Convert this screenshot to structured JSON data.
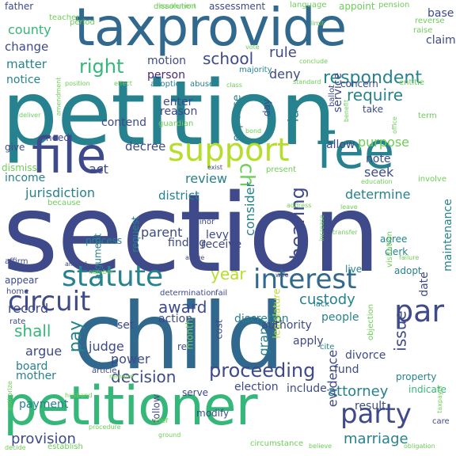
{
  "palette": {
    "purple": "#482878",
    "indigo": "#3e4a89",
    "blue": "#31688e",
    "teal": "#26828e",
    "green": "#1f9e89",
    "lime": "#35b779",
    "yellowgreen": "#6ece58",
    "yellow": "#b5de2b",
    "bright": "#fde725"
  },
  "words": [
    {
      "text": "section",
      "color": "#3e4a89"
    },
    {
      "text": "petition",
      "color": "#26828e"
    },
    {
      "text": "child",
      "color": "#31688e"
    },
    {
      "text": "petitioner",
      "color": "#35b779"
    },
    {
      "text": "taxprovide",
      "color": "#31688e"
    },
    {
      "text": "file",
      "color": "#3e4a89"
    },
    {
      "text": "fee",
      "color": "#26828e"
    },
    {
      "text": "support",
      "color": "#b5de2b"
    },
    {
      "text": "statute",
      "color": "#26828e"
    },
    {
      "text": "interest",
      "color": "#31688e"
    },
    {
      "text": "circuit",
      "color": "#3e4a89"
    },
    {
      "text": "party",
      "color": "#3e4a89"
    },
    {
      "text": "par",
      "color": "#3e4a89"
    },
    {
      "text": "respondent",
      "color": "#26828e"
    },
    {
      "text": "right",
      "color": "#35b779"
    },
    {
      "text": "school",
      "color": "#3e4a89"
    },
    {
      "text": "rule",
      "color": "#3e4a89"
    },
    {
      "text": "require",
      "color": "#26828e"
    },
    {
      "text": "ch",
      "color": "#6ece58"
    },
    {
      "text": "hearing",
      "color": "#3e4a89"
    },
    {
      "text": "consider",
      "color": "#26828e"
    },
    {
      "text": "proceeding",
      "color": "#3e4a89"
    },
    {
      "text": "decision",
      "color": "#3e4a89"
    },
    {
      "text": "provision",
      "color": "#3e4a89"
    },
    {
      "text": "marriage",
      "color": "#26828e"
    },
    {
      "text": "award",
      "color": "#3e4a89"
    },
    {
      "text": "custody",
      "color": "#26828e"
    },
    {
      "text": "shall",
      "color": "#35b779"
    },
    {
      "text": "year",
      "color": "#b5de2b"
    },
    {
      "text": "issue",
      "color": "#3e4a89"
    },
    {
      "text": "attorney",
      "color": "#26828e"
    },
    {
      "text": "county",
      "color": "#35b779"
    },
    {
      "text": "change",
      "color": "#3e4a89"
    },
    {
      "text": "matter",
      "color": "#26828e"
    },
    {
      "text": "notice",
      "color": "#26828e"
    },
    {
      "text": "motion",
      "color": "#3e4a89"
    },
    {
      "text": "person",
      "color": "#482878"
    },
    {
      "text": "deny",
      "color": "#3e4a89"
    },
    {
      "text": "law",
      "color": "#26828e"
    },
    {
      "text": "day",
      "color": "#3e4a89"
    },
    {
      "text": "enter",
      "color": "#3e4a89"
    },
    {
      "text": "reason",
      "color": "#3e4a89"
    },
    {
      "text": "contend",
      "color": "#3e4a89"
    },
    {
      "text": "expense",
      "color": "#26828e"
    },
    {
      "text": "service",
      "color": "#3e4a89"
    },
    {
      "text": "purpose",
      "color": "#6ece58"
    },
    {
      "text": "allow",
      "color": "#3e4a89"
    },
    {
      "text": "note",
      "color": "#3e4a89"
    },
    {
      "text": "seek",
      "color": "#3e4a89"
    },
    {
      "text": "determine",
      "color": "#26828e"
    },
    {
      "text": "jurisdiction",
      "color": "#26828e"
    },
    {
      "text": "district",
      "color": "#26828e"
    },
    {
      "text": "review",
      "color": "#26828e"
    },
    {
      "text": "decree",
      "color": "#3e4a89"
    },
    {
      "text": "act",
      "color": "#3e4a89"
    },
    {
      "text": "income",
      "color": "#26828e"
    },
    {
      "text": "argument",
      "color": "#26828e"
    },
    {
      "text": "record",
      "color": "#3e4a89"
    },
    {
      "text": "argue",
      "color": "#3e4a89"
    },
    {
      "text": "board",
      "color": "#26828e"
    },
    {
      "text": "mother",
      "color": "#26828e"
    },
    {
      "text": "payment",
      "color": "#26828e"
    },
    {
      "text": "parent",
      "color": "#3e4a89"
    },
    {
      "text": "finding",
      "color": "#3e4a89"
    },
    {
      "text": "receive",
      "color": "#3e4a89"
    },
    {
      "text": "request",
      "color": "#26828e"
    },
    {
      "text": "levy",
      "color": "#3e4a89"
    },
    {
      "text": "pay",
      "color": "#26828e"
    },
    {
      "text": "judge",
      "color": "#3e4a89"
    },
    {
      "text": "power",
      "color": "#3e4a89"
    },
    {
      "text": "action",
      "color": "#3e4a89"
    },
    {
      "text": "set",
      "color": "#3e4a89"
    },
    {
      "text": "rel",
      "color": "#3e4a89"
    },
    {
      "text": "month",
      "color": "#6ece58"
    },
    {
      "text": "grant",
      "color": "#26828e"
    },
    {
      "text": "cost",
      "color": "#3e4a89"
    },
    {
      "text": "discretion",
      "color": "#26828e"
    },
    {
      "text": "legislature",
      "color": "#b5de2b"
    },
    {
      "text": "authority",
      "color": "#3e4a89"
    },
    {
      "text": "people",
      "color": "#26828e"
    },
    {
      "text": "apply",
      "color": "#3e4a89"
    },
    {
      "text": "divorce",
      "color": "#3e4a89"
    },
    {
      "text": "fund",
      "color": "#3e4a89"
    },
    {
      "text": "evidence",
      "color": "#3e4a89"
    },
    {
      "text": "date",
      "color": "#3e4a89"
    },
    {
      "text": "maintenance",
      "color": "#26828e"
    },
    {
      "text": "election",
      "color": "#3e4a89"
    },
    {
      "text": "include",
      "color": "#3e4a89"
    },
    {
      "text": "result",
      "color": "#3e4a89"
    },
    {
      "text": "follow",
      "color": "#3e4a89"
    },
    {
      "text": "assessment",
      "color": "#3e4a89"
    },
    {
      "text": "father",
      "color": "#3e4a89"
    },
    {
      "text": "base",
      "color": "#3e4a89"
    },
    {
      "text": "claim",
      "color": "#3e4a89"
    },
    {
      "text": "need",
      "color": "#3e4a89"
    },
    {
      "text": "give",
      "color": "#3e4a89"
    },
    {
      "text": "dismiss",
      "color": "#6ece58"
    },
    {
      "text": "appear",
      "color": "#3e4a89"
    },
    {
      "text": "affirm",
      "color": "#3e4a89"
    },
    {
      "text": "home",
      "color": "#3e4a89"
    },
    {
      "text": "rate",
      "color": "#3e4a89"
    },
    {
      "text": "take",
      "color": "#3e4a89"
    },
    {
      "text": "concern",
      "color": "#3e4a89"
    },
    {
      "text": "process",
      "color": "#26828e"
    },
    {
      "text": "agree",
      "color": "#26828e"
    },
    {
      "text": "clerk",
      "color": "#26828e"
    },
    {
      "text": "live",
      "color": "#26828e"
    },
    {
      "text": "adopt",
      "color": "#26828e"
    },
    {
      "text": "lack",
      "color": "#26828e"
    },
    {
      "text": "cite",
      "color": "#26828e"
    },
    {
      "text": "serve",
      "color": "#3e4a89"
    },
    {
      "text": "modify",
      "color": "#3e4a89"
    },
    {
      "text": "article",
      "color": "#3e4a89"
    },
    {
      "text": "property",
      "color": "#26828e"
    },
    {
      "text": "indicate",
      "color": "#35b779"
    },
    {
      "text": "care",
      "color": "#3e4a89"
    },
    {
      "text": "dissolution",
      "color": "#6ece58"
    },
    {
      "text": "teacher",
      "color": "#6ece58"
    },
    {
      "text": "period",
      "color": "#6ece58"
    },
    {
      "text": "requirement",
      "color": "#6ece58"
    },
    {
      "text": "language",
      "color": "#6ece58"
    },
    {
      "text": "appoint",
      "color": "#6ece58"
    },
    {
      "text": "pension",
      "color": "#6ece58"
    },
    {
      "text": "raise",
      "color": "#6ece58"
    },
    {
      "text": "reverse",
      "color": "#6ece58"
    },
    {
      "text": "adoption",
      "color": "#26828e"
    },
    {
      "text": "abuse",
      "color": "#26828e"
    },
    {
      "text": "majority",
      "color": "#26828e"
    },
    {
      "text": "guardian",
      "color": "#6ece58"
    },
    {
      "text": "conclude",
      "color": "#6ece58"
    },
    {
      "text": "entitle",
      "color": "#6ece58"
    },
    {
      "text": "benefit",
      "color": "#6ece58"
    },
    {
      "text": "term",
      "color": "#6ece58"
    },
    {
      "text": "involve",
      "color": "#6ece58"
    },
    {
      "text": "amendment",
      "color": "#6ece58"
    },
    {
      "text": "present",
      "color": "#6ece58"
    },
    {
      "text": "increase",
      "color": "#6ece58"
    },
    {
      "text": "visitation",
      "color": "#6ece58"
    },
    {
      "text": "because",
      "color": "#6ece58"
    },
    {
      "text": "minor",
      "color": "#3e4a89"
    },
    {
      "text": "determination",
      "color": "#3e4a89"
    },
    {
      "text": "fail",
      "color": "#3e4a89"
    },
    {
      "text": "objection",
      "color": "#6ece58"
    },
    {
      "text": "remand",
      "color": "#6ece58"
    },
    {
      "text": "husband",
      "color": "#6ece58"
    },
    {
      "text": "authorize",
      "color": "#6ece58"
    },
    {
      "text": "relief",
      "color": "#6ece58"
    },
    {
      "text": "establish",
      "color": "#6ece58"
    },
    {
      "text": "circumstance",
      "color": "#6ece58"
    },
    {
      "text": "decide",
      "color": "#6ece58"
    },
    {
      "text": "believe",
      "color": "#6ece58"
    },
    {
      "text": "obligation",
      "color": "#6ece58"
    },
    {
      "text": "taxpayer",
      "color": "#6ece58"
    },
    {
      "text": "procedure",
      "color": "#6ece58"
    },
    {
      "text": "ballot",
      "color": "#3e4a89"
    },
    {
      "text": "allege",
      "color": "#3e4a89"
    },
    {
      "text": "wife",
      "color": "#3e4a89"
    },
    {
      "text": "office",
      "color": "#6ece58"
    },
    {
      "text": "failure",
      "color": "#6ece58"
    },
    {
      "text": "transfer",
      "color": "#6ece58"
    },
    {
      "text": "vote",
      "color": "#6ece58"
    },
    {
      "text": "limit",
      "color": "#6ece58"
    },
    {
      "text": "effect",
      "color": "#6ece58"
    },
    {
      "text": "position",
      "color": "#6ece58"
    },
    {
      "text": "deliver",
      "color": "#6ece58"
    },
    {
      "text": "ground",
      "color": "#6ece58"
    },
    {
      "text": "amend",
      "color": "#3e4a89"
    },
    {
      "text": "number",
      "color": "#6ece58"
    },
    {
      "text": "standard",
      "color": "#6ece58"
    },
    {
      "text": "class",
      "color": "#6ece58"
    },
    {
      "text": "bond",
      "color": "#6ece58"
    },
    {
      "text": "exist",
      "color": "#3e4a89"
    },
    {
      "text": "address",
      "color": "#6ece58"
    },
    {
      "text": "leave",
      "color": "#6ece58"
    },
    {
      "text": "education",
      "color": "#6ece58"
    }
  ]
}
